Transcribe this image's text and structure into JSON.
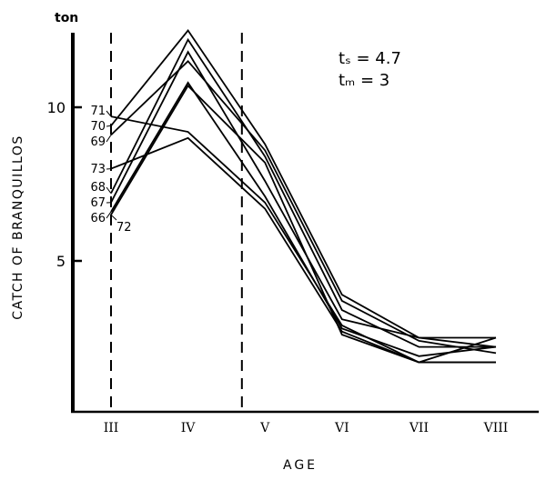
{
  "chart_data": {
    "type": "line",
    "ylabel": "CATCH OF BRANQUILLOS",
    "xlabel": "AGE",
    "yunit": "ton",
    "categories": [
      "III",
      "IV",
      "V",
      "VI",
      "VII",
      "VIII"
    ],
    "x": [
      3,
      4,
      5,
      6,
      7,
      8
    ],
    "ylim": [
      0,
      12.5
    ],
    "yticks": [
      5,
      10
    ],
    "grid": false,
    "line_color": "#000000",
    "annotations": {
      "ts": "tₛ = 4.7",
      "tm": "tₘ = 3"
    },
    "dashed_lines_at_age": [
      3,
      4.7
    ],
    "series": [
      {
        "name": "70",
        "values": [
          9.4,
          12.5,
          8.8,
          3.9,
          2.5,
          2.2
        ]
      },
      {
        "name": "71",
        "values": [
          9.7,
          9.2,
          6.9,
          2.9,
          1.7,
          2.5
        ]
      },
      {
        "name": "69",
        "values": [
          9.1,
          11.5,
          8.6,
          3.7,
          2.4,
          2.0
        ]
      },
      {
        "name": "73",
        "values": [
          8.0,
          9.0,
          6.7,
          2.7,
          1.7,
          1.7
        ]
      },
      {
        "name": "68",
        "values": [
          7.2,
          12.2,
          8.4,
          3.4,
          2.2,
          2.2
        ]
      },
      {
        "name": "67",
        "values": [
          6.9,
          11.8,
          7.6,
          3.1,
          2.5,
          2.5
        ]
      },
      {
        "name": "66",
        "values": [
          6.6,
          10.8,
          7.1,
          2.8,
          1.9,
          2.2
        ]
      },
      {
        "name": "72",
        "values": [
          6.5,
          10.7,
          8.2,
          2.6,
          1.7,
          1.7
        ]
      }
    ]
  }
}
